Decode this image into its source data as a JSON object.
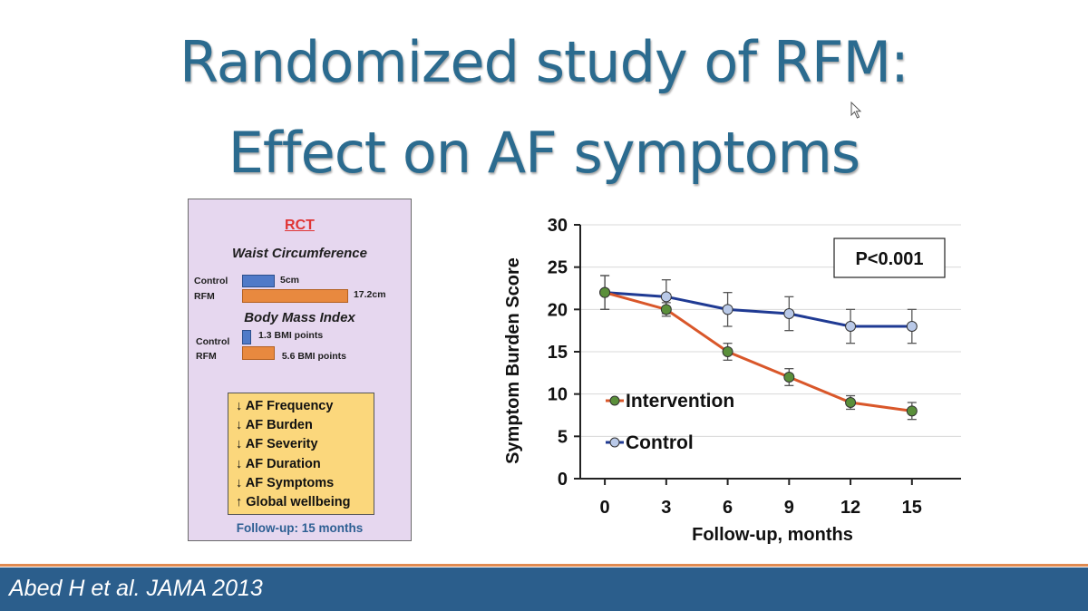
{
  "slide": {
    "title_line1": "Randomized study of RFM:",
    "title_line2": "Effect on AF symptoms",
    "citation": "Abed H et al. JAMA 2013"
  },
  "rct_panel": {
    "heading": "RCT",
    "waist": {
      "title": "Waist Circumference",
      "control_label": "Control",
      "rfm_label": "RFM",
      "control_value_label": "5cm",
      "rfm_value_label": "17.2cm",
      "control_value": 5,
      "rfm_value": 17.2
    },
    "bmi": {
      "title": "Body Mass Index",
      "control_label": "Control",
      "rfm_label": "RFM",
      "control_value_label": "1.3 BMI points",
      "rfm_value_label": "5.6 BMI points",
      "control_value": 1.3,
      "rfm_value": 5.6
    },
    "outcomes": [
      "↓ AF Frequency",
      "↓ AF Burden",
      "↓ AF Severity",
      "↓ AF Duration",
      "↓ AF Symptoms",
      "↑ Global wellbeing"
    ],
    "followup": "Follow-up: 15 months",
    "colors": {
      "control": "#4f7ac8",
      "rfm": "#e8893f",
      "panel_bg": "#e6d7ef",
      "outcome_bg": "#fbd77c",
      "heading": "#e03434"
    }
  },
  "chart_data": {
    "type": "line",
    "x": [
      0,
      3,
      6,
      9,
      12,
      15
    ],
    "xlabel": "Follow-up, months",
    "ylabel": "Symptom Burden Score",
    "ylim": [
      0,
      30
    ],
    "yticks": [
      0,
      5,
      10,
      15,
      20,
      25,
      30
    ],
    "grid": true,
    "annotation": "P<0.001",
    "legend_position": "bottom-left",
    "series": [
      {
        "name": "Intervention",
        "color": "#d9572a",
        "marker_color": "#5a8f3a",
        "values": [
          22,
          20,
          15,
          12,
          9,
          8
        ],
        "error": [
          2,
          0.8,
          1,
          1,
          0.8,
          1
        ]
      },
      {
        "name": "Control",
        "color": "#1f3a93",
        "marker_color": "#b9c9e8",
        "values": [
          22,
          21.5,
          20,
          19.5,
          18,
          18
        ],
        "error": [
          2,
          2,
          2,
          2,
          2,
          2
        ]
      }
    ]
  }
}
